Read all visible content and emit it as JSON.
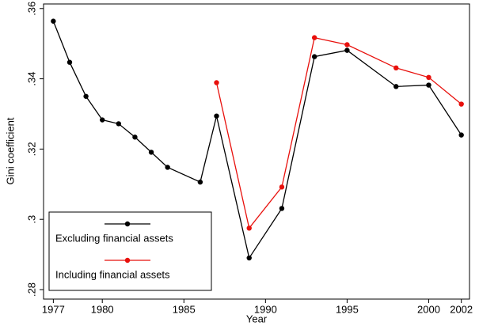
{
  "chart_data": {
    "type": "line",
    "x_label": "Year",
    "y_label": "Gini coefficient",
    "xlim": [
      1976.4,
      2002.5
    ],
    "ylim": [
      0.2773,
      0.3613
    ],
    "xticks": [
      1977,
      1980,
      1985,
      1990,
      1995,
      2000,
      2002
    ],
    "yticks": [
      {
        "value": 0.28,
        "label": ".28"
      },
      {
        "value": 0.3,
        "label": ".3"
      },
      {
        "value": 0.32,
        "label": ".32"
      },
      {
        "value": 0.34,
        "label": ".34"
      },
      {
        "value": 0.36,
        "label": ".36"
      }
    ],
    "legend_position": "bottom-left",
    "series": [
      {
        "name": "Excluding financial assets",
        "color": "#000000",
        "x": [
          1977,
          1978,
          1979,
          1980,
          1981,
          1982,
          1983,
          1984,
          1986,
          1987,
          1989,
          1991,
          1993,
          1995,
          1998,
          2000,
          2002
        ],
        "values": [
          0.3564,
          0.3447,
          0.335,
          0.3283,
          0.3272,
          0.3234,
          0.3191,
          0.3148,
          0.3106,
          0.3294,
          0.289,
          0.3031,
          0.3463,
          0.3481,
          0.3378,
          0.3382,
          0.324
        ]
      },
      {
        "name": "Including financial assets",
        "color": "#e8100c",
        "x": [
          1987,
          1989,
          1991,
          1993,
          1995,
          1998,
          2000,
          2002
        ],
        "values": [
          0.3389,
          0.2975,
          0.3092,
          0.3517,
          0.3497,
          0.3431,
          0.3404,
          0.3328
        ]
      }
    ]
  }
}
